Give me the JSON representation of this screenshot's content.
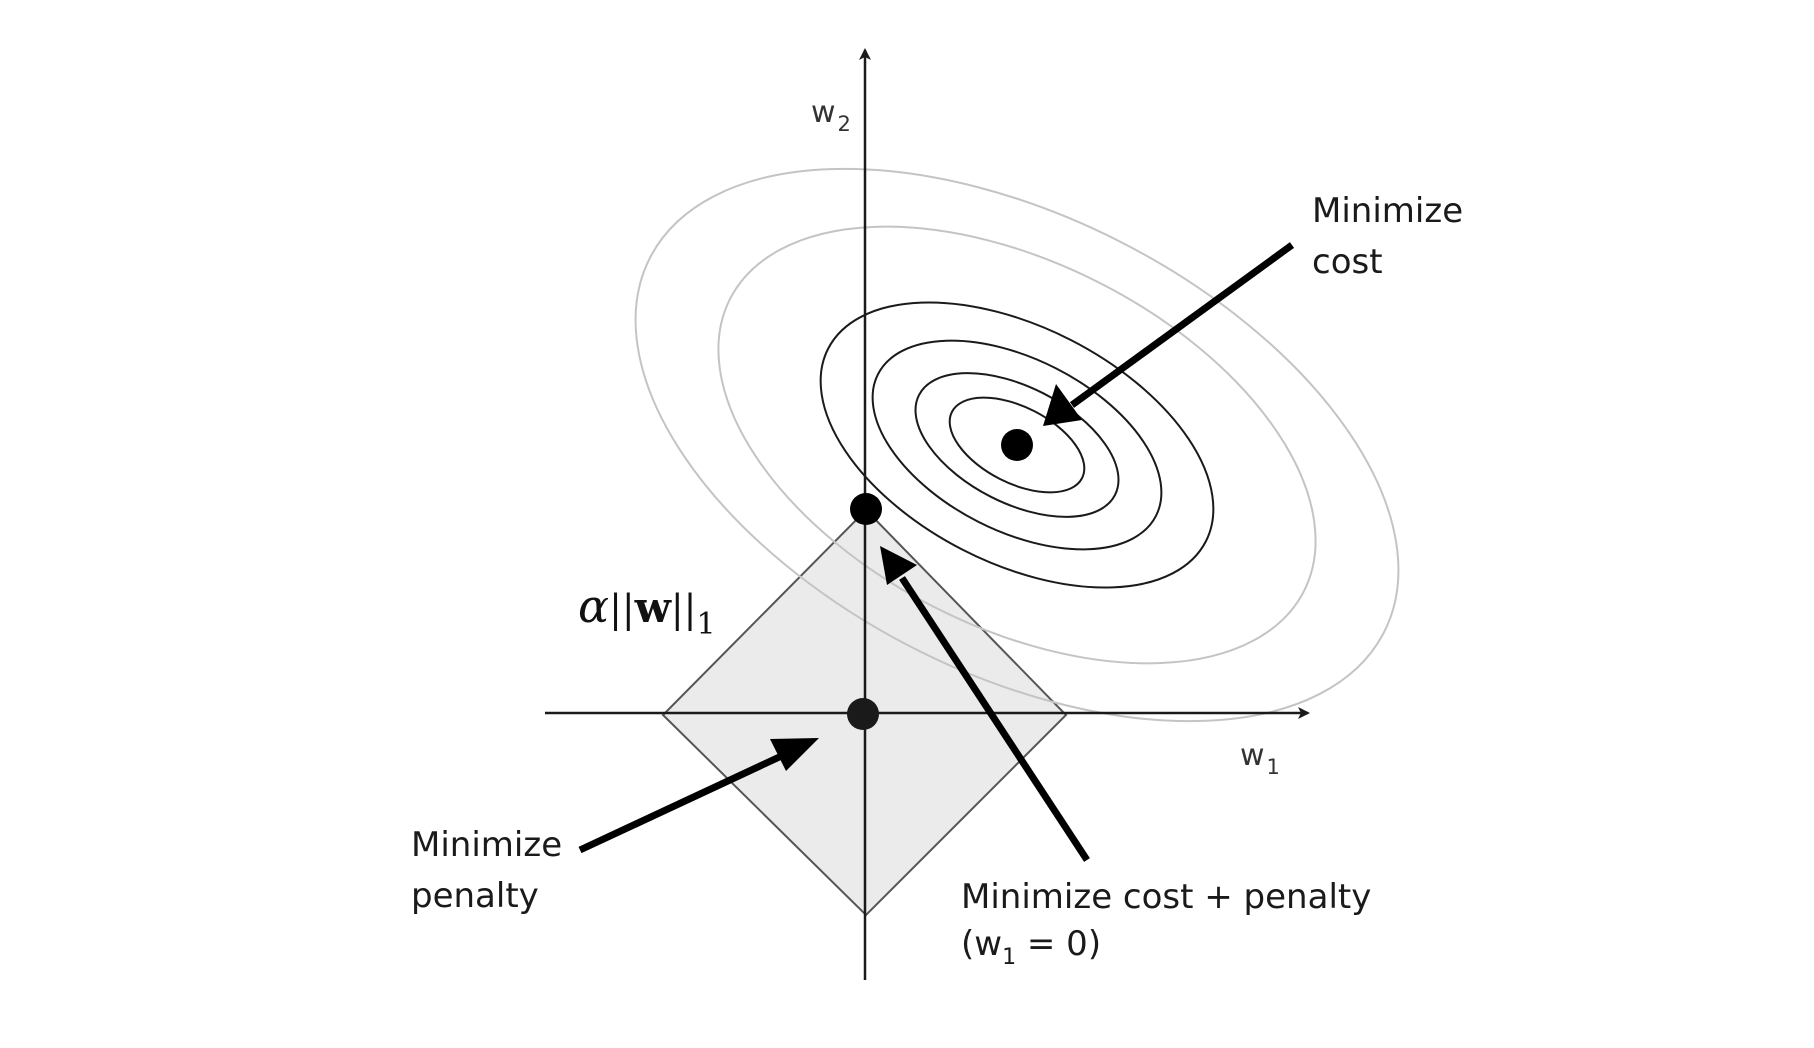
{
  "diagram": {
    "axes": {
      "x_label_base": "w",
      "x_label_sub": "1",
      "y_label_base": "w",
      "y_label_sub": "2"
    },
    "penalty_label": {
      "alpha": "α",
      "bars_left": "||",
      "w": "w",
      "bars_right": "||",
      "sub": "1"
    },
    "annotations": {
      "minimize_cost": [
        "Minimize",
        "cost"
      ],
      "minimize_penalty": [
        "Minimize",
        "penalty"
      ],
      "minimize_both": {
        "line1": "Minimize cost + penalty",
        "line2_open": "(w",
        "line2_sub": "1",
        "line2_close": " = 0)"
      }
    },
    "colors": {
      "penalty_fill": "#ebebeb",
      "inner_contours": "#1a1a1a",
      "outer_contours": "#c4c4c4",
      "axes": "#1a1a1a"
    }
  }
}
